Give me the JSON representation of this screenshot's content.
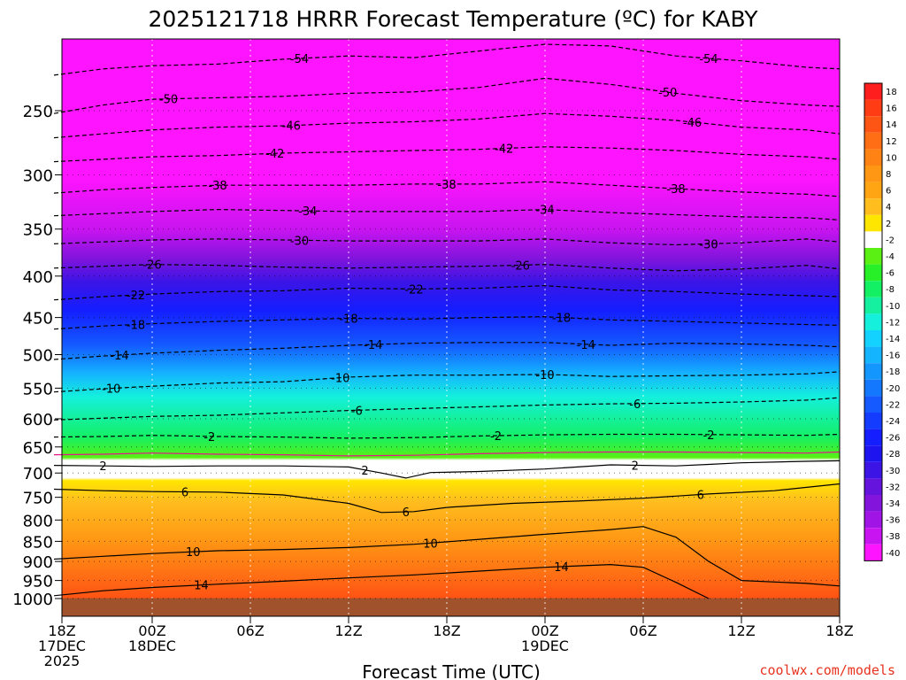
{
  "chart_data": {
    "type": "heatmap",
    "title": "2025121718 HRRR Forecast Temperature (ºC) for KABY",
    "xlabel": "Forecast Time (UTC)",
    "ylabel": "",
    "credit": "coolwx.com/models",
    "x_range_hours": [
      0,
      48
    ],
    "y_range_hpa": [
      200,
      1040
    ],
    "x_ticks": [
      {
        "hour": 0,
        "lines": [
          "18Z",
          "17DEC",
          "2025"
        ]
      },
      {
        "hour": 6,
        "lines": [
          "00Z",
          "18DEC"
        ]
      },
      {
        "hour": 12,
        "lines": [
          "06Z"
        ]
      },
      {
        "hour": 18,
        "lines": [
          "12Z"
        ]
      },
      {
        "hour": 24,
        "lines": [
          "18Z"
        ]
      },
      {
        "hour": 30,
        "lines": [
          "00Z",
          "19DEC"
        ]
      },
      {
        "hour": 36,
        "lines": [
          "06Z"
        ]
      },
      {
        "hour": 42,
        "lines": [
          "12Z"
        ]
      },
      {
        "hour": 48,
        "lines": [
          "18Z"
        ]
      }
    ],
    "y_ticks": [
      250,
      300,
      350,
      400,
      450,
      500,
      550,
      600,
      650,
      700,
      750,
      800,
      850,
      900,
      950,
      1000
    ],
    "grid": true,
    "legend_placement": "right",
    "colorbar": {
      "labels": [
        "18",
        "16",
        "14",
        "12",
        "10",
        "8",
        "6",
        "4",
        "2",
        "-2",
        "-4",
        "-6",
        "-8",
        "-10",
        "-12",
        "-14",
        "-16",
        "-18",
        "-20",
        "-22",
        "-24",
        "-26",
        "-28",
        "-30",
        "-32",
        "-34",
        "-36",
        "-38",
        "-40"
      ],
      "colors": [
        "#ff1e1e",
        "#ff3c14",
        "#ff5514",
        "#ff6e14",
        "#ff8214",
        "#ff9614",
        "#ffa514",
        "#ffbe1e",
        "#ffe600",
        "#ffffff",
        "#5af014",
        "#28f028",
        "#14f064",
        "#14f0a0",
        "#14f0dc",
        "#14d2ff",
        "#14b4ff",
        "#1496ff",
        "#1478ff",
        "#145aff",
        "#143cff",
        "#141eff",
        "#1e14f0",
        "#3c14e6",
        "#6414dc",
        "#8214dc",
        "#a014e6",
        "#c814f0",
        "#ff14ff"
      ]
    },
    "isotherms": [
      {
        "value": -54,
        "label": "-54",
        "points": [
          [
            0,
            226
          ],
          [
            3,
            222
          ],
          [
            6,
            220
          ],
          [
            10,
            219
          ],
          [
            14,
            216
          ],
          [
            18,
            214
          ],
          [
            22,
            215
          ],
          [
            26,
            211
          ],
          [
            30,
            207
          ],
          [
            34,
            208
          ],
          [
            38,
            214
          ],
          [
            42,
            217
          ],
          [
            46,
            221
          ],
          [
            48,
            222
          ]
        ],
        "labels_at": [
          15,
          40
        ]
      },
      {
        "value": -50,
        "label": "-50",
        "points": [
          [
            0,
            252
          ],
          [
            3,
            246
          ],
          [
            6,
            242
          ],
          [
            10,
            241
          ],
          [
            14,
            240
          ],
          [
            18,
            238
          ],
          [
            22,
            237
          ],
          [
            26,
            234
          ],
          [
            30,
            228
          ],
          [
            34,
            232
          ],
          [
            38,
            238
          ],
          [
            42,
            243
          ],
          [
            46,
            246
          ],
          [
            48,
            247
          ]
        ],
        "labels_at": [
          7,
          37.5
        ]
      },
      {
        "value": -46,
        "label": "-46",
        "points": [
          [
            0,
            270
          ],
          [
            3,
            267
          ],
          [
            6,
            264
          ],
          [
            10,
            262
          ],
          [
            14,
            261
          ],
          [
            18,
            259
          ],
          [
            22,
            258
          ],
          [
            26,
            256
          ],
          [
            30,
            252
          ],
          [
            34,
            254
          ],
          [
            38,
            257
          ],
          [
            42,
            262
          ],
          [
            46,
            264
          ],
          [
            48,
            267
          ]
        ],
        "labels_at": [
          14.5,
          39
        ]
      },
      {
        "value": -42,
        "label": "-42",
        "points": [
          [
            0,
            289
          ],
          [
            3,
            287
          ],
          [
            6,
            285
          ],
          [
            10,
            284
          ],
          [
            14,
            282
          ],
          [
            18,
            281
          ],
          [
            22,
            280
          ],
          [
            26,
            279
          ],
          [
            30,
            277
          ],
          [
            34,
            278
          ],
          [
            38,
            280
          ],
          [
            42,
            283
          ],
          [
            46,
            285
          ],
          [
            48,
            287
          ]
        ],
        "labels_at": [
          13.5,
          27.5
        ]
      },
      {
        "value": -38,
        "label": "-38",
        "points": [
          [
            0,
            316
          ],
          [
            3,
            313
          ],
          [
            6,
            311
          ],
          [
            10,
            309
          ],
          [
            14,
            309
          ],
          [
            18,
            309
          ],
          [
            22,
            308
          ],
          [
            26,
            308
          ],
          [
            30,
            306
          ],
          [
            34,
            309
          ],
          [
            38,
            312
          ],
          [
            42,
            315
          ],
          [
            46,
            317
          ],
          [
            48,
            319
          ]
        ],
        "labels_at": [
          10,
          24,
          38
        ]
      },
      {
        "value": -34,
        "label": "-34",
        "points": [
          [
            0,
            337
          ],
          [
            3,
            335
          ],
          [
            6,
            333
          ],
          [
            10,
            331
          ],
          [
            14,
            332
          ],
          [
            18,
            333
          ],
          [
            22,
            333
          ],
          [
            26,
            333
          ],
          [
            30,
            331
          ],
          [
            34,
            334
          ],
          [
            38,
            336
          ],
          [
            42,
            338
          ],
          [
            46,
            339
          ],
          [
            48,
            341
          ]
        ],
        "labels_at": [
          15.5,
          30
        ]
      },
      {
        "value": -30,
        "label": "-30",
        "points": [
          [
            0,
            365
          ],
          [
            3,
            363
          ],
          [
            6,
            361
          ],
          [
            10,
            360
          ],
          [
            14,
            361
          ],
          [
            18,
            362
          ],
          [
            22,
            362
          ],
          [
            26,
            362
          ],
          [
            30,
            360
          ],
          [
            34,
            364
          ],
          [
            38,
            366
          ],
          [
            42,
            364
          ],
          [
            46,
            360
          ],
          [
            48,
            363
          ]
        ],
        "labels_at": [
          15,
          40
        ]
      },
      {
        "value": -26,
        "label": "-26",
        "points": [
          [
            0,
            391
          ],
          [
            3,
            389
          ],
          [
            6,
            387
          ],
          [
            10,
            388
          ],
          [
            14,
            390
          ],
          [
            18,
            391
          ],
          [
            22,
            390
          ],
          [
            26,
            389
          ],
          [
            30,
            387
          ],
          [
            34,
            391
          ],
          [
            38,
            394
          ],
          [
            42,
            392
          ],
          [
            46,
            388
          ],
          [
            48,
            392
          ]
        ],
        "labels_at": [
          6,
          28.5
        ]
      },
      {
        "value": -22,
        "label": "-22",
        "points": [
          [
            0,
            428
          ],
          [
            3,
            424
          ],
          [
            6,
            421
          ],
          [
            10,
            418
          ],
          [
            14,
            417
          ],
          [
            18,
            414
          ],
          [
            22,
            415
          ],
          [
            26,
            414
          ],
          [
            30,
            411
          ],
          [
            34,
            416
          ],
          [
            38,
            418
          ],
          [
            42,
            421
          ],
          [
            46,
            423
          ],
          [
            48,
            424
          ]
        ],
        "labels_at": [
          5,
          22
        ]
      },
      {
        "value": -18,
        "label": "-18",
        "points": [
          [
            0,
            465
          ],
          [
            3,
            461
          ],
          [
            6,
            458
          ],
          [
            10,
            455
          ],
          [
            14,
            453
          ],
          [
            18,
            451
          ],
          [
            22,
            452
          ],
          [
            26,
            450
          ],
          [
            30,
            449
          ],
          [
            34,
            453
          ],
          [
            38,
            455
          ],
          [
            42,
            457
          ],
          [
            46,
            459
          ],
          [
            48,
            460
          ]
        ],
        "labels_at": [
          5,
          18,
          31
        ]
      },
      {
        "value": -14,
        "label": "-14",
        "points": [
          [
            0,
            507
          ],
          [
            3,
            502
          ],
          [
            6,
            498
          ],
          [
            10,
            494
          ],
          [
            14,
            491
          ],
          [
            18,
            487
          ],
          [
            22,
            484
          ],
          [
            26,
            483
          ],
          [
            30,
            483
          ],
          [
            34,
            487
          ],
          [
            38,
            484
          ],
          [
            42,
            485
          ],
          [
            46,
            487
          ],
          [
            48,
            489
          ]
        ],
        "labels_at": [
          4,
          19.5,
          32.5
        ]
      },
      {
        "value": -10,
        "label": "-10",
        "points": [
          [
            0,
            556
          ],
          [
            3,
            551
          ],
          [
            6,
            547
          ],
          [
            10,
            542
          ],
          [
            14,
            540
          ],
          [
            18,
            533
          ],
          [
            22,
            530
          ],
          [
            26,
            530
          ],
          [
            30,
            529
          ],
          [
            34,
            532
          ],
          [
            38,
            531
          ],
          [
            42,
            530
          ],
          [
            46,
            528
          ],
          [
            48,
            525
          ]
        ],
        "labels_at": [
          3.5,
          17.5,
          30
        ]
      },
      {
        "value": -6,
        "label": "-6",
        "points": [
          [
            0,
            602
          ],
          [
            3,
            599
          ],
          [
            6,
            596
          ],
          [
            10,
            594
          ],
          [
            14,
            590
          ],
          [
            18,
            586
          ],
          [
            22,
            583
          ],
          [
            26,
            580
          ],
          [
            30,
            577
          ],
          [
            34,
            575
          ],
          [
            38,
            574
          ],
          [
            42,
            572
          ],
          [
            46,
            569
          ],
          [
            48,
            565
          ]
        ],
        "labels_at": [
          18.5,
          35.5
        ]
      },
      {
        "value": -2,
        "label": "-2",
        "points": [
          [
            0,
            632
          ],
          [
            3,
            631
          ],
          [
            6,
            629
          ],
          [
            10,
            631
          ],
          [
            14,
            632
          ],
          [
            18,
            634
          ],
          [
            22,
            633
          ],
          [
            26,
            630
          ],
          [
            30,
            628
          ],
          [
            34,
            627
          ],
          [
            38,
            627
          ],
          [
            42,
            628
          ],
          [
            46,
            629
          ],
          [
            48,
            627
          ]
        ],
        "labels_at": [
          9.5,
          27,
          40
        ]
      },
      {
        "value": 2,
        "label": "2",
        "points": [
          [
            0,
            685
          ],
          [
            3,
            686
          ],
          [
            6,
            687
          ],
          [
            10,
            686
          ],
          [
            14,
            686
          ],
          [
            18,
            688
          ],
          [
            20,
            700
          ],
          [
            21.5,
            710
          ],
          [
            23,
            699
          ],
          [
            26,
            697
          ],
          [
            30,
            692
          ],
          [
            34,
            684
          ],
          [
            38,
            686
          ],
          [
            40,
            683
          ],
          [
            42,
            680
          ],
          [
            46,
            677
          ],
          [
            48,
            676
          ]
        ],
        "labels_at": [
          3,
          19,
          35.5
        ]
      },
      {
        "value": 6,
        "label": "6",
        "points": [
          [
            0,
            733
          ],
          [
            3,
            736
          ],
          [
            6,
            738
          ],
          [
            10,
            739
          ],
          [
            14,
            745
          ],
          [
            18,
            763
          ],
          [
            20,
            783
          ],
          [
            22,
            781
          ],
          [
            24,
            772
          ],
          [
            28,
            763
          ],
          [
            32,
            758
          ],
          [
            36,
            752
          ],
          [
            40,
            743
          ],
          [
            44,
            736
          ],
          [
            48,
            722
          ]
        ],
        "labels_at": [
          8,
          21.5,
          39.5
        ]
      },
      {
        "value": 10,
        "label": "10",
        "points": [
          [
            0,
            894
          ],
          [
            3,
            887
          ],
          [
            6,
            880
          ],
          [
            10,
            873
          ],
          [
            14,
            870
          ],
          [
            18,
            865
          ],
          [
            22,
            857
          ],
          [
            26,
            845
          ],
          [
            30,
            833
          ],
          [
            34,
            822
          ],
          [
            36,
            815
          ],
          [
            38,
            840
          ],
          [
            40,
            900
          ],
          [
            42,
            950
          ],
          [
            46,
            958
          ],
          [
            48,
            965
          ]
        ],
        "labels_at": [
          8.5,
          23
        ]
      },
      {
        "value": 14,
        "label": "14",
        "points": [
          [
            0,
            992
          ],
          [
            3,
            978
          ],
          [
            6,
            969
          ],
          [
            10,
            960
          ],
          [
            14,
            952
          ],
          [
            18,
            943
          ],
          [
            22,
            935
          ],
          [
            26,
            925
          ],
          [
            30,
            915
          ],
          [
            34,
            908
          ],
          [
            36,
            915
          ],
          [
            38,
            955
          ],
          [
            40,
            1000
          ]
        ],
        "labels_at": [
          9,
          31
        ]
      }
    ]
  }
}
